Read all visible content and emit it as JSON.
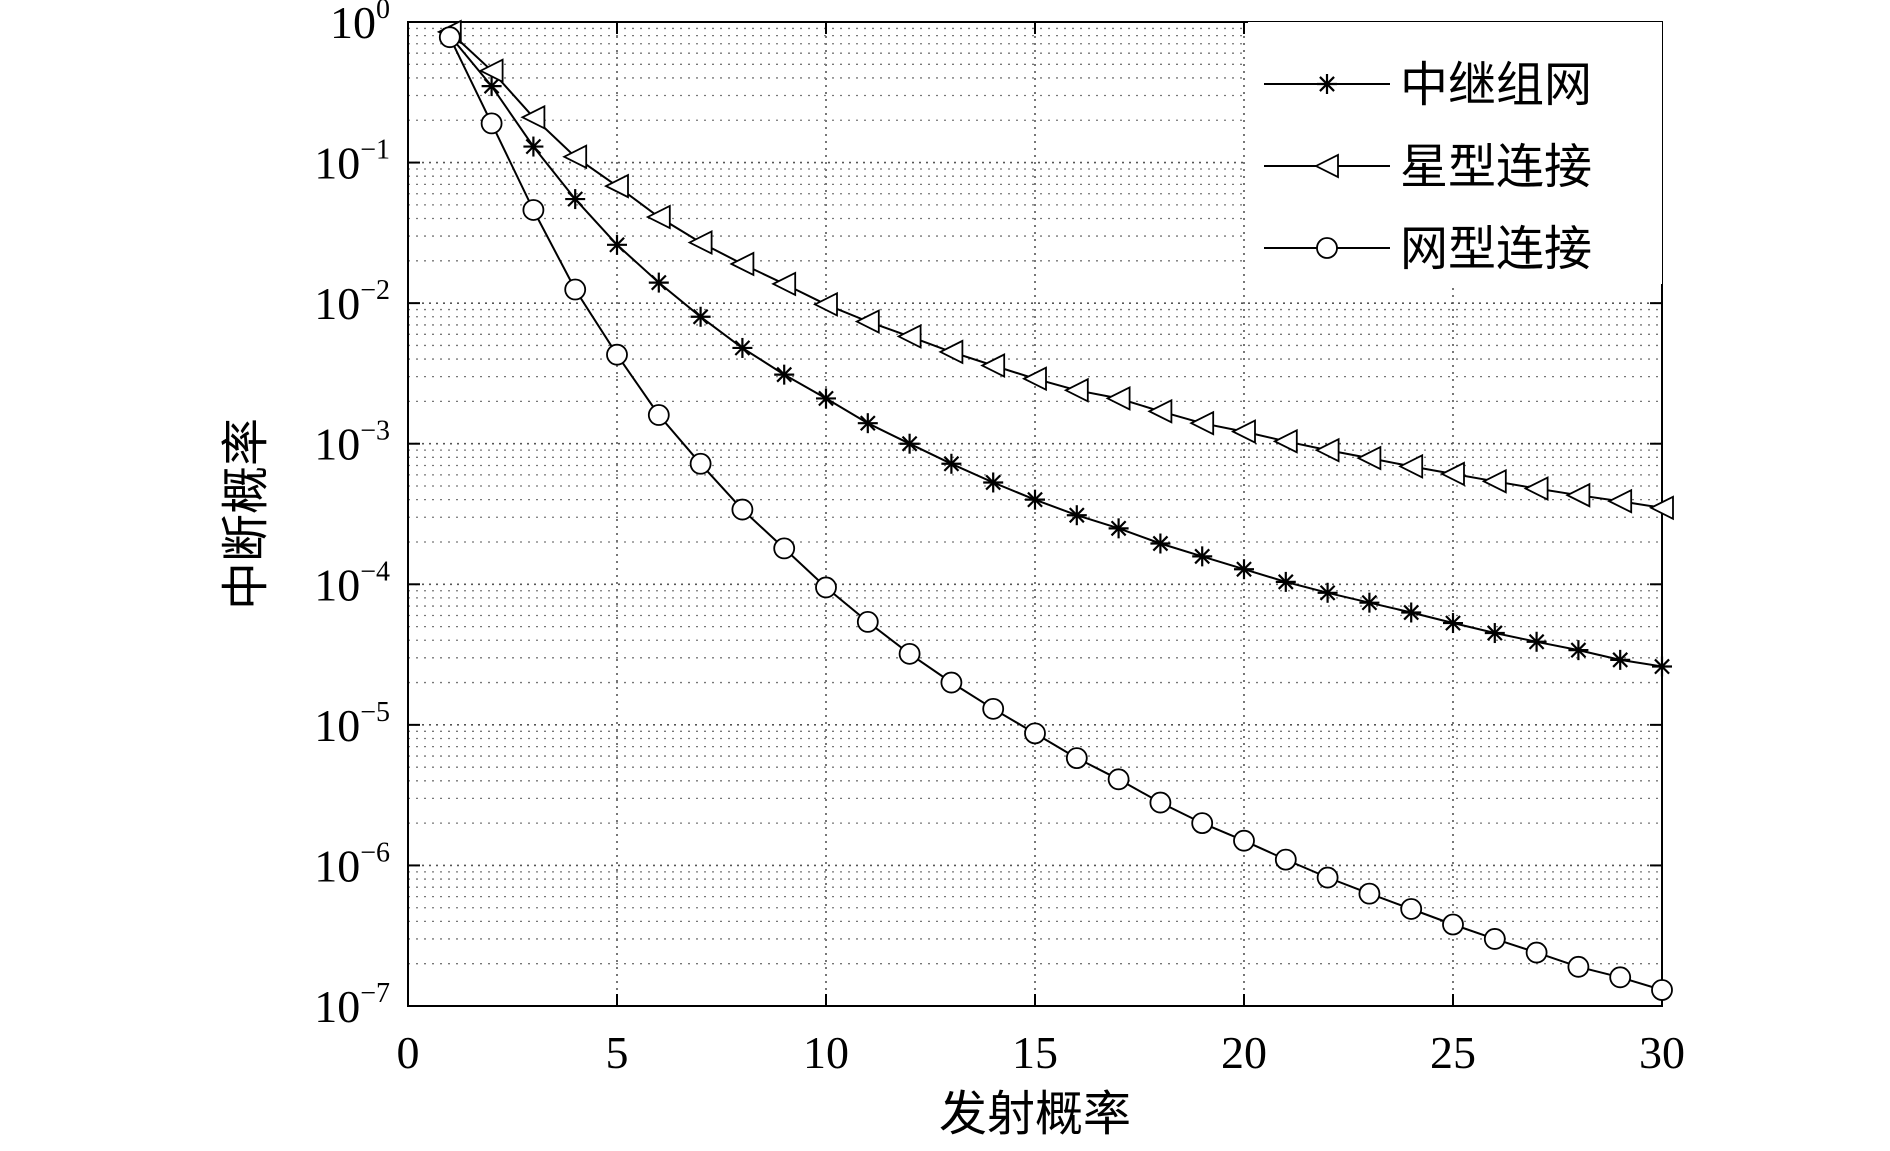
{
  "chart_data": {
    "type": "line",
    "xlabel": "发射概率",
    "ylabel": "中断概率",
    "xlim": [
      0,
      30
    ],
    "ylim": [
      1e-07,
      1
    ],
    "yscale": "log",
    "grid": true,
    "legend_position": "top-right",
    "x_ticks": [
      "0",
      "5",
      "10",
      "15",
      "20",
      "25",
      "30"
    ],
    "y_ticks": [
      {
        "base": "10",
        "exp": "0"
      },
      {
        "base": "10",
        "exp": "−1"
      },
      {
        "base": "10",
        "exp": "−2"
      },
      {
        "base": "10",
        "exp": "−3"
      },
      {
        "base": "10",
        "exp": "−4"
      },
      {
        "base": "10",
        "exp": "−5"
      },
      {
        "base": "10",
        "exp": "−6"
      },
      {
        "base": "10",
        "exp": "−7"
      }
    ],
    "x": [
      1,
      2,
      3,
      4,
      5,
      6,
      7,
      8,
      9,
      10,
      11,
      12,
      13,
      14,
      15,
      16,
      17,
      18,
      19,
      20,
      21,
      22,
      23,
      24,
      25,
      26,
      27,
      28,
      29,
      30
    ],
    "series": [
      {
        "name": "中继组网",
        "marker": "star",
        "values": [
          0.8,
          0.35,
          0.13,
          0.055,
          0.026,
          0.014,
          0.008,
          0.0048,
          0.0031,
          0.0021,
          0.0014,
          0.001,
          0.00072,
          0.00053,
          0.0004,
          0.00031,
          0.00025,
          0.000195,
          0.000158,
          0.000128,
          0.000104,
          8.7e-05,
          7.4e-05,
          6.3e-05,
          5.3e-05,
          4.5e-05,
          3.9e-05,
          3.4e-05,
          2.9e-05,
          2.6e-05
        ]
      },
      {
        "name": "星型连接",
        "marker": "triangle-left",
        "values": [
          0.85,
          0.45,
          0.21,
          0.11,
          0.068,
          0.041,
          0.027,
          0.019,
          0.0137,
          0.0098,
          0.0074,
          0.0058,
          0.0045,
          0.0036,
          0.0029,
          0.0024,
          0.0021,
          0.0017,
          0.0014,
          0.00122,
          0.00104,
          0.0009,
          0.00079,
          0.00069,
          0.00061,
          0.00054,
          0.00048,
          0.00043,
          0.00039,
          0.00035
        ]
      },
      {
        "name": "网型连接",
        "marker": "circle",
        "values": [
          0.78,
          0.19,
          0.046,
          0.0125,
          0.0043,
          0.0016,
          0.00072,
          0.00034,
          0.00018,
          9.5e-05,
          5.4e-05,
          3.2e-05,
          2e-05,
          1.3e-05,
          8.7e-06,
          5.8e-06,
          4.1e-06,
          2.8e-06,
          2e-06,
          1.5e-06,
          1.1e-06,
          8.2e-07,
          6.3e-07,
          4.9e-07,
          3.8e-07,
          3e-07,
          2.4e-07,
          1.9e-07,
          1.6e-07,
          1.3e-07
        ]
      }
    ],
    "colors": {
      "line": "#000000",
      "background": "#ffffff"
    }
  }
}
